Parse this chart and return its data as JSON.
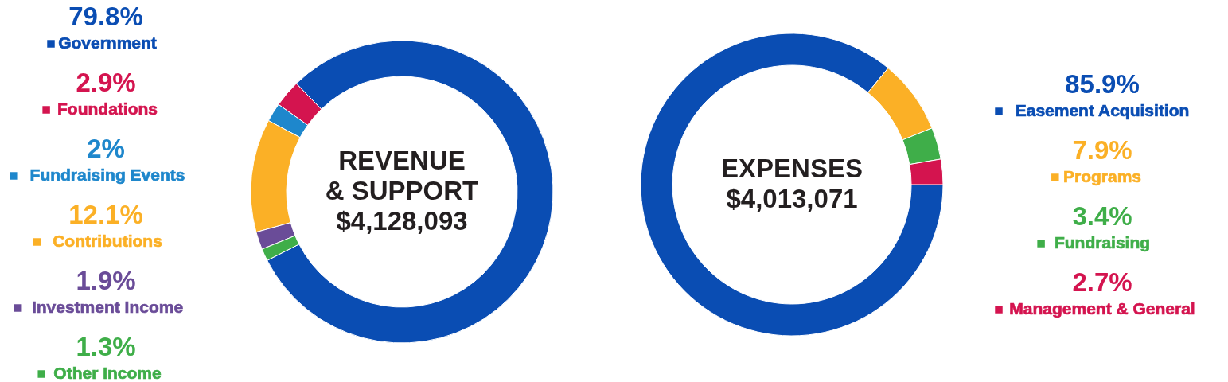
{
  "chart_data": [
    {
      "type": "donut",
      "title": "REVENUE & SUPPORT",
      "subtitle": "$4,128,093",
      "legend": "left",
      "categories": [
        "Government",
        "Foundations",
        "Fundraising Events",
        "Contributions",
        "Investment Income",
        "Other Income"
      ],
      "values": [
        79.8,
        2.9,
        2,
        12.1,
        1.9,
        1.3
      ],
      "value_labels": [
        "79.8%",
        "2.9%",
        "2%",
        "12.1%",
        "1.9%",
        "1.3%"
      ],
      "colors": [
        "#0a4db3",
        "#d4144f",
        "#1e87cc",
        "#fbb026",
        "#6a4c98",
        "#3fae49"
      ]
    },
    {
      "type": "donut",
      "title": "EXPENSES",
      "subtitle": "$4,013,071",
      "legend": "right",
      "categories": [
        "Easement Acquisition",
        "Programs",
        "Fundraising",
        "Management & General"
      ],
      "values": [
        85.9,
        7.9,
        3.4,
        2.7
      ],
      "value_labels": [
        "85.9%",
        "7.9%",
        "3.4%",
        "2.7%"
      ],
      "colors": [
        "#0a4db3",
        "#fbb026",
        "#3fae49",
        "#d4144f"
      ]
    }
  ]
}
